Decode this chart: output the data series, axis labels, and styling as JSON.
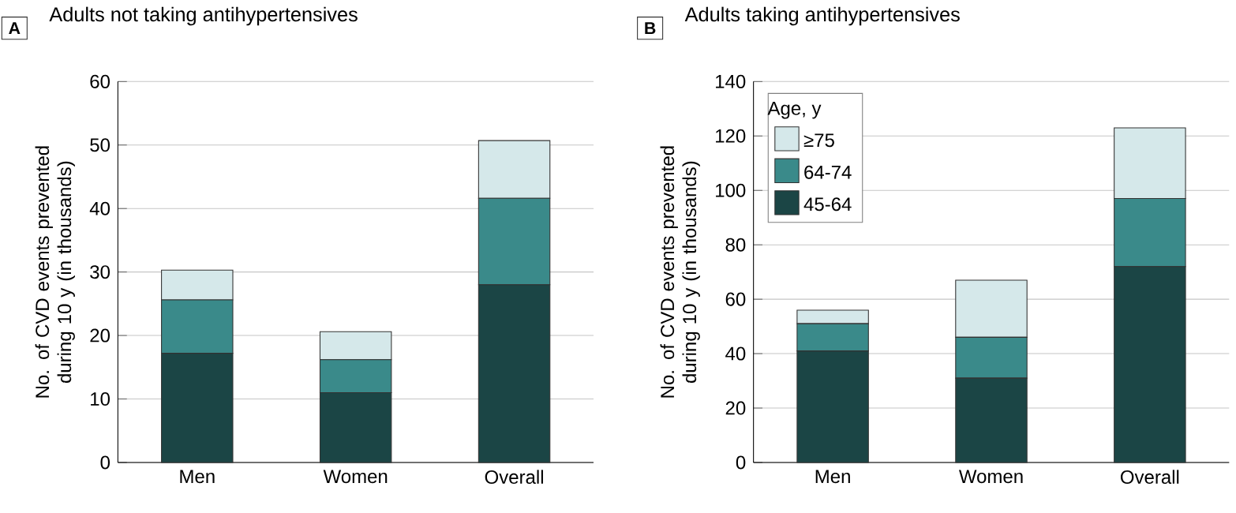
{
  "chart_data": [
    {
      "type": "bar",
      "stacked": true,
      "title": "Adults not taking antihypertensives",
      "annotations": [
        "A"
      ],
      "ylabel": "No. of CVD events prevented during 10 y (in thousands)",
      "categories": [
        "Men",
        "Women",
        "Overall"
      ],
      "ylim": [
        0,
        60
      ],
      "yticks": [
        0,
        10,
        20,
        30,
        40,
        50,
        60
      ],
      "grid": "y",
      "series": [
        {
          "color": "#1b4545",
          "values": [
            17.2,
            11,
            28
          ]
        },
        {
          "color": "#3a8a8a",
          "values": [
            8.4,
            5.2,
            13.6
          ]
        },
        {
          "color": "#d5e8ea",
          "values": [
            4.7,
            4.4,
            9.1
          ]
        }
      ]
    },
    {
      "type": "bar",
      "stacked": true,
      "title": "Adults taking antihypertensives",
      "annotations": [
        "B"
      ],
      "ylabel": "No. of CVD events prevented during 10 y (in thousands)",
      "categories": [
        "Men",
        "Women",
        "Overall"
      ],
      "ylim": [
        0,
        140
      ],
      "yticks": [
        0,
        20,
        40,
        60,
        80,
        100,
        120,
        140
      ],
      "grid": "y",
      "legend": "top left",
      "legend_title": "Age, y",
      "series": [
        {
          "name": "45-64",
          "color": "#1b4545",
          "values": [
            41,
            31,
            72
          ]
        },
        {
          "name": "64-74",
          "color": "#3a8a8a",
          "values": [
            10,
            15,
            25
          ]
        },
        {
          "name": "≥75",
          "color": "#d5e8ea",
          "values": [
            5,
            21,
            26
          ]
        }
      ]
    }
  ]
}
